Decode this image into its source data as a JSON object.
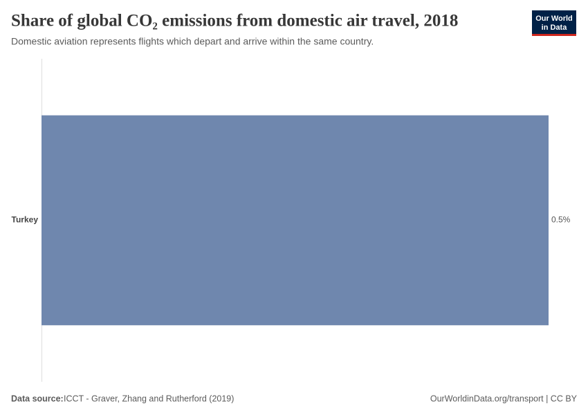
{
  "chart_data": {
    "type": "bar",
    "orientation": "horizontal",
    "title": "Share of global CO₂ emissions from domestic air travel, 2018",
    "subtitle": "Domestic aviation represents flights which depart and arrive within the same country.",
    "categories": [
      "Turkey"
    ],
    "values": [
      0.5
    ],
    "value_labels": [
      "0.5%"
    ],
    "color": "#6f87ae"
  },
  "logo": {
    "line1": "Our World",
    "line2": "in Data"
  },
  "footer": {
    "source_label": "Data source:",
    "source": "ICCT - Graver, Zhang and Rutherford (2019)",
    "url": "OurWorldinData.org/transport | CC BY"
  }
}
